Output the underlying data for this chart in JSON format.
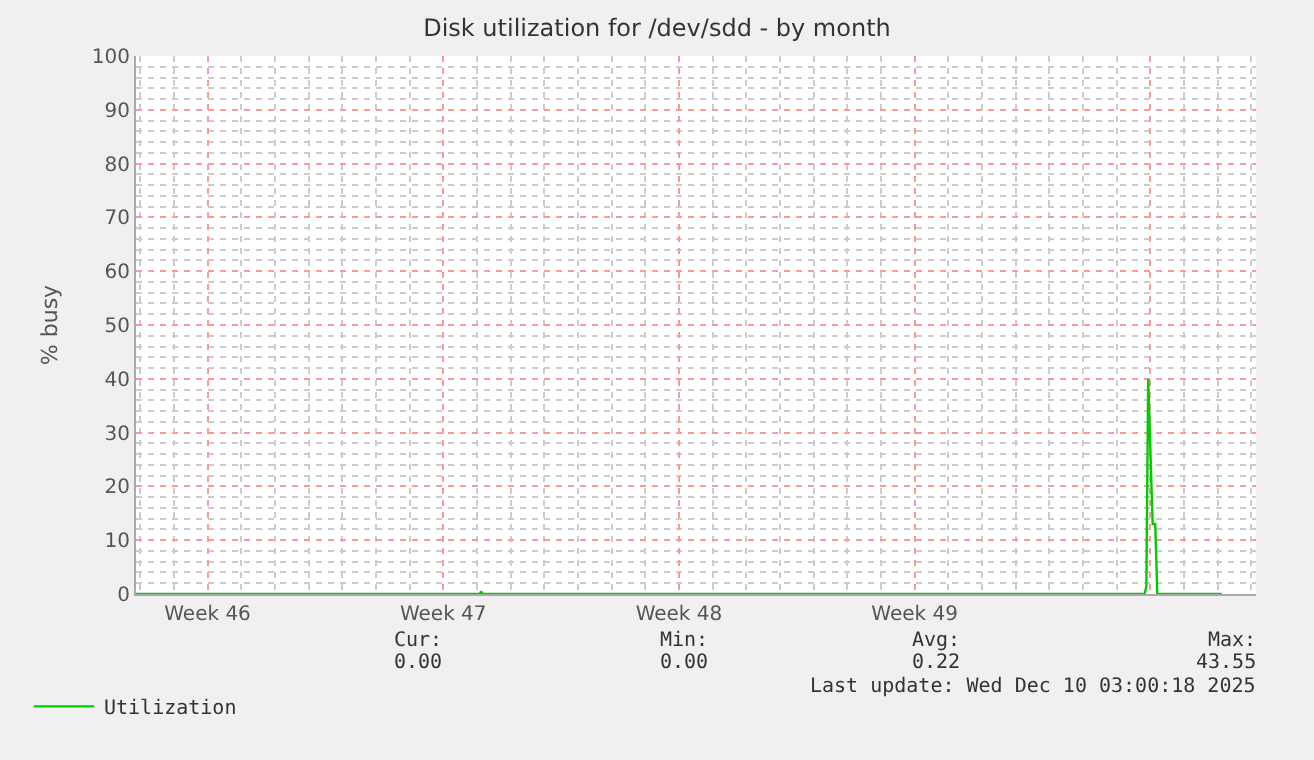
{
  "chart_data": {
    "type": "line",
    "title": "Disk utilization for /dev/sdd - by month",
    "ylabel": "% busy",
    "x": [
      "2025-11-07T21:00",
      "2025-11-18T02:00",
      "2025-11-18T03:00",
      "2025-11-18T04:00",
      "2025-12-07T20:00",
      "2025-12-07T21:10",
      "2025-12-07T22:30",
      "2025-12-08T01:40",
      "2025-12-08T03:30",
      "2025-12-08T05:00",
      "2025-12-10T03:00"
    ],
    "series": [
      {
        "name": "Utilization",
        "color": "#00cc00",
        "values": [
          0,
          0,
          0.5,
          0,
          0,
          1.5,
          40,
          13,
          13,
          0,
          0
        ]
      }
    ],
    "xlim": [
      "2025-11-07T21:00",
      "2025-12-11T03:20"
    ],
    "xticks": [
      {
        "value": "2025-11-10",
        "label": "Week 46"
      },
      {
        "value": "2025-11-17",
        "label": "Week 47"
      },
      {
        "value": "2025-11-24",
        "label": "Week 48"
      },
      {
        "value": "2025-12-01",
        "label": "Week 49"
      },
      {
        "value": "2025-12-08",
        "label": null
      }
    ],
    "ylim": [
      0,
      100
    ],
    "yticks": [
      0,
      10,
      20,
      30,
      40,
      50,
      60,
      70,
      80,
      90,
      100
    ],
    "grid": true,
    "legend": "bottom left",
    "annotations": [
      "Cur:",
      "Min:",
      "Avg:",
      "Max:",
      "0.00",
      "0.00",
      "0.22",
      "43.55",
      "Last update: Wed Dec 10 03:00:18 2025"
    ]
  }
}
